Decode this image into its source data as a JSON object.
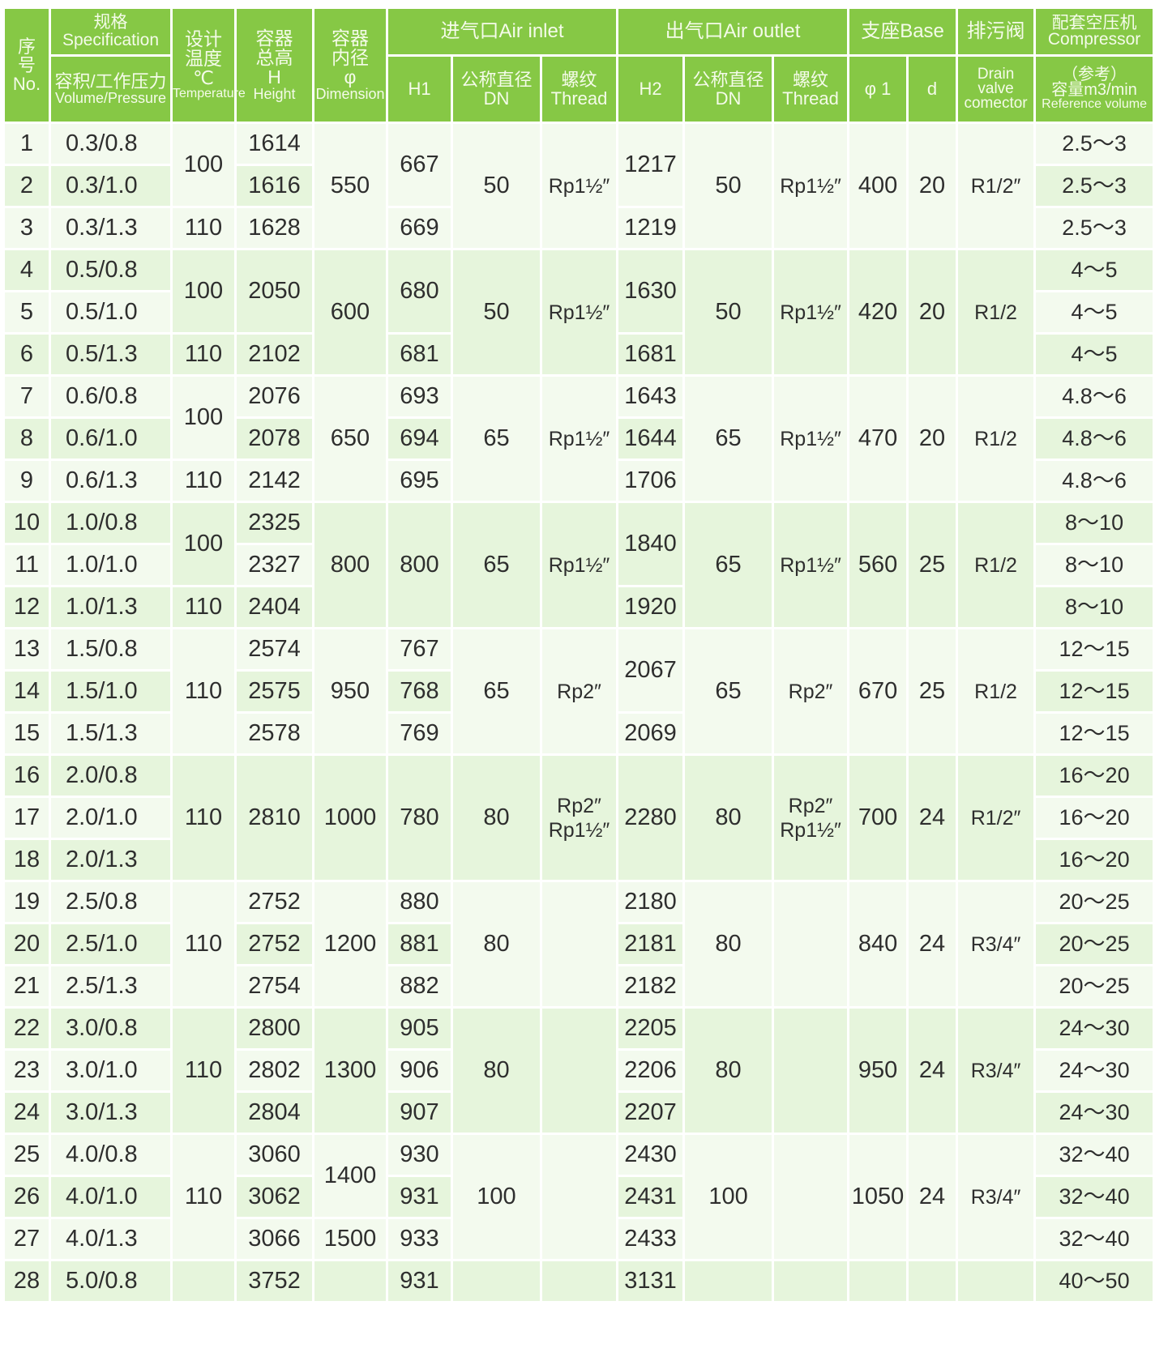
{
  "header": {
    "no": "序\n号\nNo.",
    "spec": "规格Specification",
    "spec_sub_cn": "容积/工作压力",
    "spec_sub_en": "Volume/Pressure",
    "temp_cn": "设计\n温度\n℃",
    "temp_en": "Temperature",
    "height_cn": "容器\n总高\nH",
    "height_en": "Height",
    "dim_cn": "容器\n内径\nφ",
    "dim_en": "Dimension",
    "air_inlet": "进气口Air inlet",
    "air_outlet": "出气口Air outlet",
    "h1": "H1",
    "in_dn": "公称直径\nDN",
    "in_thread": "螺纹\nThread",
    "h2": "H2",
    "out_dn": "公称直径\nDN",
    "out_thread": "螺纹\nThread",
    "base": "支座Base",
    "phi1": "φ 1",
    "d": "d",
    "drain_cn": "排污阀",
    "drain_en": "Drain\nvalve\ncomector",
    "comp_cn": "配套空压机\nCompressor",
    "comp_sub_cn": "（参考）\n容量m3/min",
    "comp_sub_en": "Reference volume"
  },
  "columns": {
    "no": [
      "1",
      "2",
      "3",
      "4",
      "5",
      "6",
      "7",
      "8",
      "9",
      "10",
      "11",
      "12",
      "13",
      "14",
      "15",
      "16",
      "17",
      "18",
      "19",
      "20",
      "21",
      "22",
      "23",
      "24",
      "25",
      "26",
      "27",
      "28"
    ],
    "spec": [
      "0.3/0.8",
      "0.3/1.0",
      "0.3/1.3",
      "0.5/0.8",
      "0.5/1.0",
      "0.5/1.3",
      "0.6/0.8",
      "0.6/1.0",
      "0.6/1.3",
      "1.0/0.8",
      "1.0/1.0",
      "1.0/1.3",
      "1.5/0.8",
      "1.5/1.0",
      "1.5/1.3",
      "2.0/0.8",
      "2.0/1.0",
      "2.0/1.3",
      "2.5/0.8",
      "2.5/1.0",
      "2.5/1.3",
      "3.0/0.8",
      "3.0/1.0",
      "3.0/1.3",
      "4.0/0.8",
      "4.0/1.0",
      "4.0/1.3",
      "5.0/0.8"
    ],
    "temp": [
      "100",
      null,
      "110",
      "100",
      null,
      "110",
      "100",
      null,
      "110",
      "100",
      null,
      "110",
      "110",
      null,
      null,
      "110",
      null,
      null,
      "110",
      null,
      null,
      "110",
      null,
      null,
      "110",
      null,
      null,
      ""
    ],
    "height": [
      "1614",
      "1616",
      "1628",
      "2050",
      null,
      "2102",
      "2076",
      "2078",
      "2142",
      "2325",
      "2327",
      "2404",
      "2574",
      "2575",
      "2578",
      "2810",
      null,
      null,
      "2752",
      "2752",
      "2754",
      "2800",
      "2802",
      "2804",
      "3060",
      "3062",
      "3066",
      "3752"
    ],
    "dim": [
      "550",
      null,
      null,
      "600",
      null,
      null,
      "650",
      null,
      null,
      "800",
      null,
      null,
      "950",
      null,
      null,
      "1000",
      null,
      null,
      "1200",
      null,
      null,
      "1300",
      null,
      null,
      "1400",
      null,
      "1500",
      ""
    ],
    "h1": [
      "667",
      null,
      "669",
      "680",
      null,
      "681",
      "693",
      "694",
      "695",
      "800",
      null,
      null,
      "767",
      "768",
      "769",
      "780",
      null,
      null,
      "880",
      "881",
      "882",
      "905",
      "906",
      "907",
      "930",
      "931",
      "933",
      "931"
    ],
    "in_dn": [
      "50",
      null,
      null,
      "50",
      null,
      null,
      "65",
      null,
      null,
      "65",
      null,
      null,
      "65",
      null,
      null,
      "80",
      null,
      null,
      "80",
      null,
      null,
      "80",
      null,
      null,
      "100",
      null,
      null,
      ""
    ],
    "in_thread": [
      "Rp1½″",
      null,
      null,
      "Rp1½″",
      null,
      null,
      "Rp1½″",
      null,
      null,
      "Rp1½″",
      null,
      null,
      "Rp2″",
      null,
      null,
      "Rp2″\nRp1½″",
      null,
      null,
      "",
      null,
      null,
      "",
      null,
      null,
      "",
      null,
      null,
      ""
    ],
    "h2": [
      "1217",
      null,
      "1219",
      "1630",
      null,
      "1681",
      "1643",
      "1644",
      "1706",
      "1840",
      null,
      "1920",
      "2067",
      null,
      "2069",
      "2280",
      null,
      null,
      "2180",
      "2181",
      "2182",
      "2205",
      "2206",
      "2207",
      "2430",
      "2431",
      "2433",
      "3131"
    ],
    "out_dn": [
      "50",
      null,
      null,
      "50",
      null,
      null,
      "65",
      null,
      null,
      "65",
      null,
      null,
      "65",
      null,
      null,
      "80",
      null,
      null,
      "80",
      null,
      null,
      "80",
      null,
      null,
      "100",
      null,
      null,
      ""
    ],
    "out_thread": [
      "Rp1½″",
      null,
      null,
      "Rp1½″",
      null,
      null,
      "Rp1½″",
      null,
      null,
      "Rp1½″",
      null,
      null,
      "Rp2″",
      null,
      null,
      "Rp2″\nRp1½″",
      null,
      null,
      "",
      null,
      null,
      "",
      null,
      null,
      "",
      null,
      null,
      ""
    ],
    "phi1": [
      "400",
      null,
      null,
      "420",
      null,
      null,
      "470",
      null,
      null,
      "560",
      null,
      null,
      "670",
      null,
      null,
      "700",
      null,
      null,
      "840",
      null,
      null,
      "950",
      null,
      null,
      "1050",
      null,
      null,
      ""
    ],
    "d": [
      "20",
      null,
      null,
      "20",
      null,
      null,
      "20",
      null,
      null,
      "25",
      null,
      null,
      "25",
      null,
      null,
      "24",
      null,
      null,
      "24",
      null,
      null,
      "24",
      null,
      null,
      "24",
      null,
      null,
      ""
    ],
    "drain": [
      "R1/2″",
      null,
      null,
      "R1/2",
      null,
      null,
      "R1/2",
      null,
      null,
      "R1/2",
      null,
      null,
      "R1/2",
      null,
      null,
      "R1/2″",
      null,
      null,
      "R3/4″",
      null,
      null,
      "R3/4″",
      null,
      null,
      "R3/4″",
      null,
      null,
      ""
    ],
    "comp": [
      "2.5～3",
      "2.5～3",
      "2.5～3",
      "4～5",
      "4～5",
      "4～5",
      "4.8～6",
      "4.8～6",
      "4.8～6",
      "8～10",
      "8～10",
      "8～10",
      "12～15",
      "12～15",
      "12～15",
      "16～20",
      "16～20",
      "16～20",
      "20～25",
      "20～25",
      "20～25",
      "24～30",
      "24～30",
      "24～30",
      "32～40",
      "32～40",
      "32～40",
      "40～50"
    ]
  },
  "colors": {
    "header_bg": "#86c845",
    "cell_bg": "#e6f5dc",
    "cell_alt_bg": "#f3faee",
    "text": "#2e2e2e"
  }
}
